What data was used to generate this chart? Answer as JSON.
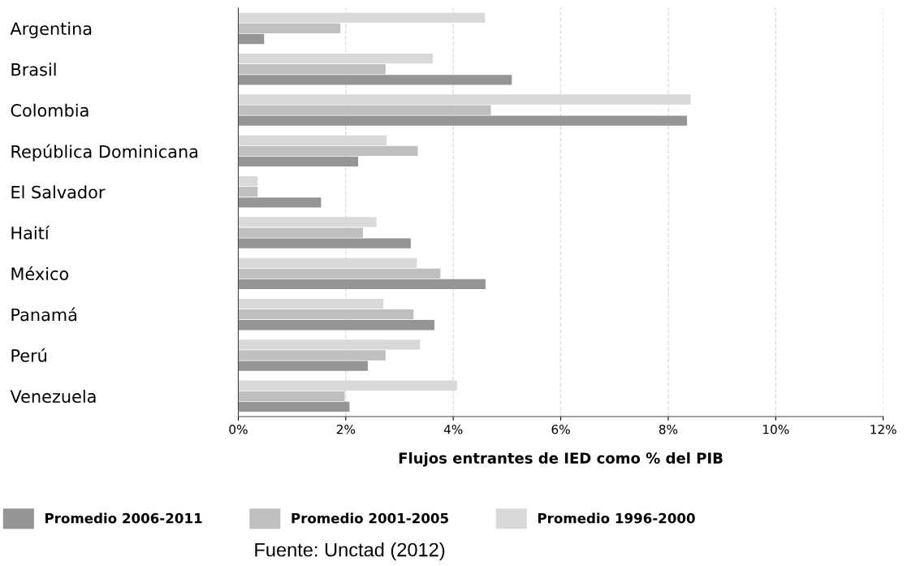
{
  "chart_data": {
    "type": "bar",
    "orientation": "horizontal",
    "categories": [
      "Argentina",
      "Brasil",
      "Colombia",
      "República Dominicana",
      "El Salvador",
      "Haití",
      "México",
      "Panamá",
      "Perú",
      "Venezuela"
    ],
    "series": [
      {
        "name": "Promedio 2006-2011",
        "color": "#959595",
        "values": [
          0.48,
          5.09,
          8.35,
          2.23,
          1.54,
          3.21,
          4.6,
          3.65,
          2.41,
          2.07
        ]
      },
      {
        "name": "Promedio 2001-2005",
        "color": "#bfbfbf",
        "values": [
          1.9,
          2.74,
          4.7,
          3.34,
          0.36,
          2.32,
          3.76,
          3.26,
          2.74,
          1.98
        ]
      },
      {
        "name": "Promedio 1996-2000",
        "color": "#d9d9d9",
        "values": [
          4.59,
          3.62,
          8.42,
          2.76,
          0.36,
          2.57,
          3.32,
          2.7,
          3.38,
          4.07
        ]
      }
    ],
    "xlabel": "Flujos entrantes de IED como % del PIB",
    "xlim": [
      0,
      12
    ],
    "xticks": [
      {
        "value": 0,
        "label": "0%"
      },
      {
        "value": 2,
        "label": "2%"
      },
      {
        "value": 4,
        "label": "4%"
      },
      {
        "value": 6,
        "label": "6%"
      },
      {
        "value": 8,
        "label": "8%"
      },
      {
        "value": 10,
        "label": "10%"
      },
      {
        "value": 12,
        "label": "12%"
      }
    ],
    "grid": "x",
    "line_style": "dashed",
    "legend": "bottom",
    "annotations": [
      "Fuente: Unctad (2012)"
    ]
  }
}
